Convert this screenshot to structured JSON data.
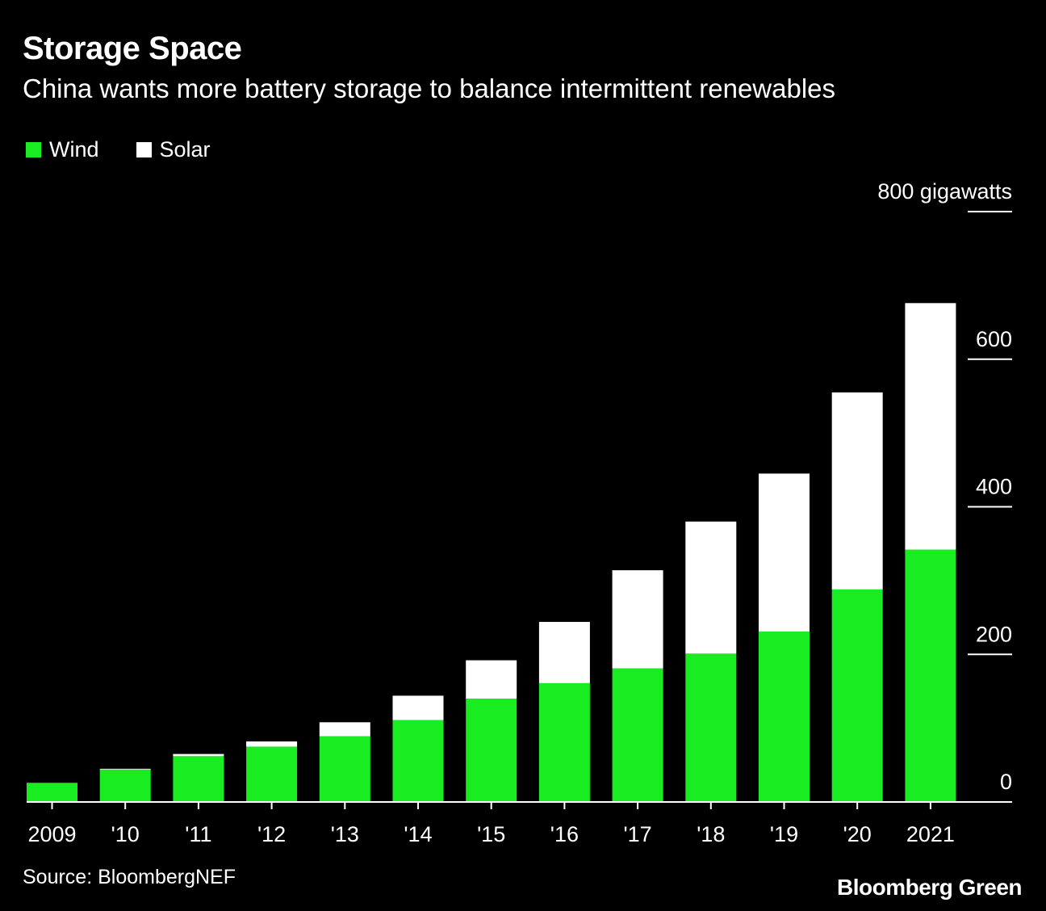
{
  "title": "Storage Space",
  "subtitle": "China wants more battery storage to balance intermittent renewables",
  "legend": [
    {
      "label": "Wind",
      "color": "#19ec21"
    },
    {
      "label": "Solar",
      "color": "#ffffff"
    }
  ],
  "source": "Source: BloombergNEF",
  "brand": "Bloomberg Green",
  "chart_data": {
    "type": "bar",
    "stacked": true,
    "title": "Storage Space",
    "subtitle": "China wants more battery storage to balance intermittent renewables",
    "categories": [
      "2009",
      "'10",
      "'11",
      "'12",
      "'13",
      "'14",
      "'15",
      "'16",
      "'17",
      "'18",
      "'19",
      "'20",
      "2021"
    ],
    "series": [
      {
        "name": "Wind",
        "color": "#19ec21",
        "values": [
          26,
          44,
          62,
          75,
          89,
          111,
          140,
          161,
          181,
          201,
          231,
          288,
          342
        ]
      },
      {
        "name": "Solar",
        "color": "#ffffff",
        "values": [
          0,
          1,
          3,
          7,
          19,
          33,
          52,
          83,
          133,
          179,
          214,
          267,
          334
        ]
      }
    ],
    "y_ticks": [
      0,
      200,
      400,
      600,
      800
    ],
    "y_tick_labels": [
      "0",
      "200",
      "400",
      "600",
      "800 gigawatts"
    ],
    "ylim": [
      0,
      800
    ],
    "ylabel": "gigawatts",
    "xlabel": "",
    "y_axis_side": "right",
    "grid": false
  }
}
